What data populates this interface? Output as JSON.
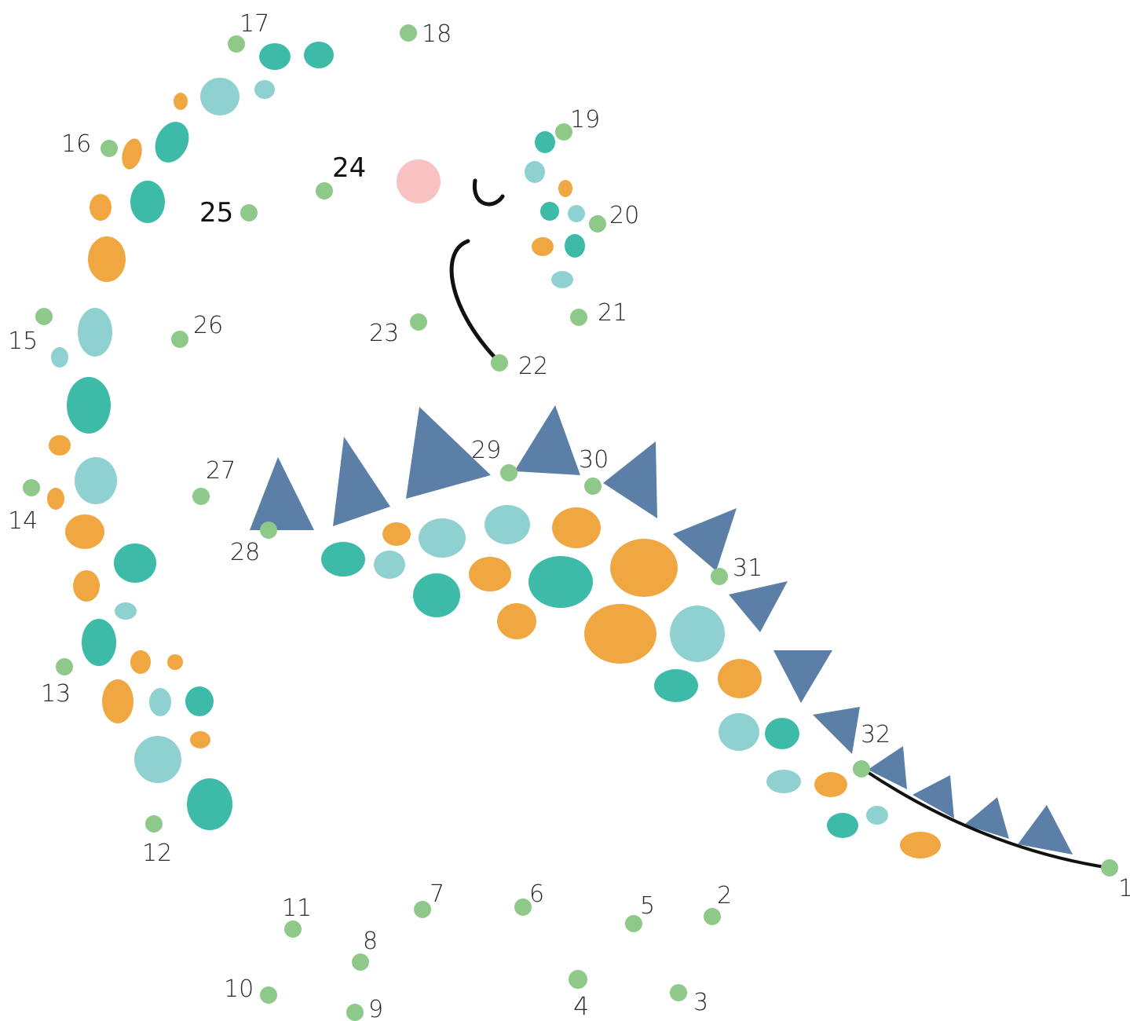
{
  "dots": [
    {
      "label": "1"
    },
    {
      "label": "2"
    },
    {
      "label": "3"
    },
    {
      "label": "4"
    },
    {
      "label": "5"
    },
    {
      "label": "6"
    },
    {
      "label": "7"
    },
    {
      "label": "8"
    },
    {
      "label": "9"
    },
    {
      "label": "10"
    },
    {
      "label": "11"
    },
    {
      "label": "12"
    },
    {
      "label": "13"
    },
    {
      "label": "14"
    },
    {
      "label": "15"
    },
    {
      "label": "16"
    },
    {
      "label": "17"
    },
    {
      "label": "18"
    },
    {
      "label": "19"
    },
    {
      "label": "20"
    },
    {
      "label": "21"
    },
    {
      "label": "22"
    },
    {
      "label": "23"
    },
    {
      "label": "24"
    },
    {
      "label": "25"
    },
    {
      "label": "26"
    },
    {
      "label": "27"
    },
    {
      "label": "28"
    },
    {
      "label": "29"
    },
    {
      "label": "30"
    },
    {
      "label": "31"
    },
    {
      "label": "32"
    }
  ],
  "colors": {
    "dot_green": "#8ec98a",
    "teal": "#3dbba8",
    "light_teal": "#8fd1d0",
    "orange": "#f0a742",
    "plate_blue": "#5b7fa6",
    "cheek_pink": "#f8c2c2",
    "line_black": "#111111"
  }
}
